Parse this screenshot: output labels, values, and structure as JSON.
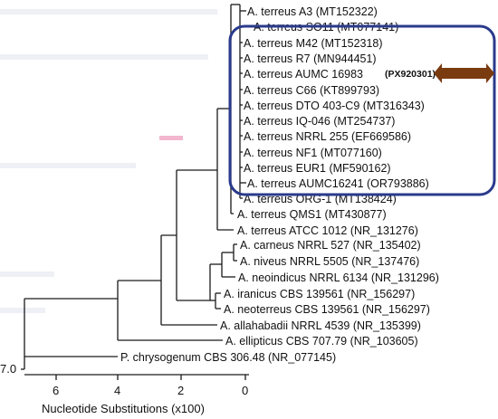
{
  "colors": {
    "highlight_box": "#2a3a8c",
    "arrow": "#7a3b10",
    "ghost_marker": "#f3b6cf"
  },
  "taxa": [
    "A. terreus A3 (MT152322)",
    "A. terreus SO11 (MT077141)",
    "A. terreus M42 (MT152318)",
    "A. terreus R7 (MN944451)",
    "A. terreus AUMC 16983",
    "A. terreus C66 (KT899793)",
    "A. terreus DTO 403-C9 (MT316343)",
    "A. terreus IQ-046 (MT254737)",
    "A. terreus NRRL 255 (EF669586)",
    "A. terreus NF1 (MT077160)",
    "A. terreus EUR1 (MF590162)",
    "A. terreus AUMC16241 (OR793886)",
    "A. terreus ORG-1 (MT138424)",
    "A. terreus QMS1 (MT430877)",
    "A. terreus ATCC 1012 (NR_131276)",
    "A. carneus NRRL 527 (NR_135402)",
    "A. niveus NRRL 5505 (NR_137476)",
    "A. neoindicus NRRL 6134 (NR_131296)",
    "A. iranicus CBS 139561 (NR_156297)",
    "A. neoterreus CBS 139561 (NR_156297)",
    "A. allahabadii NRRL 4539 (NR_135399)",
    "A. ellipticus CBS 707.79 (NR_103605)",
    "P. chrysogenum CBS 306.48 (NR_077145)"
  ],
  "accession_highlight": "(PX920301)",
  "root_value": "7.0",
  "axis": {
    "label": "Nucleotide Substitutions (x100)",
    "ticks": [
      "6",
      "4",
      "2",
      "0"
    ]
  }
}
